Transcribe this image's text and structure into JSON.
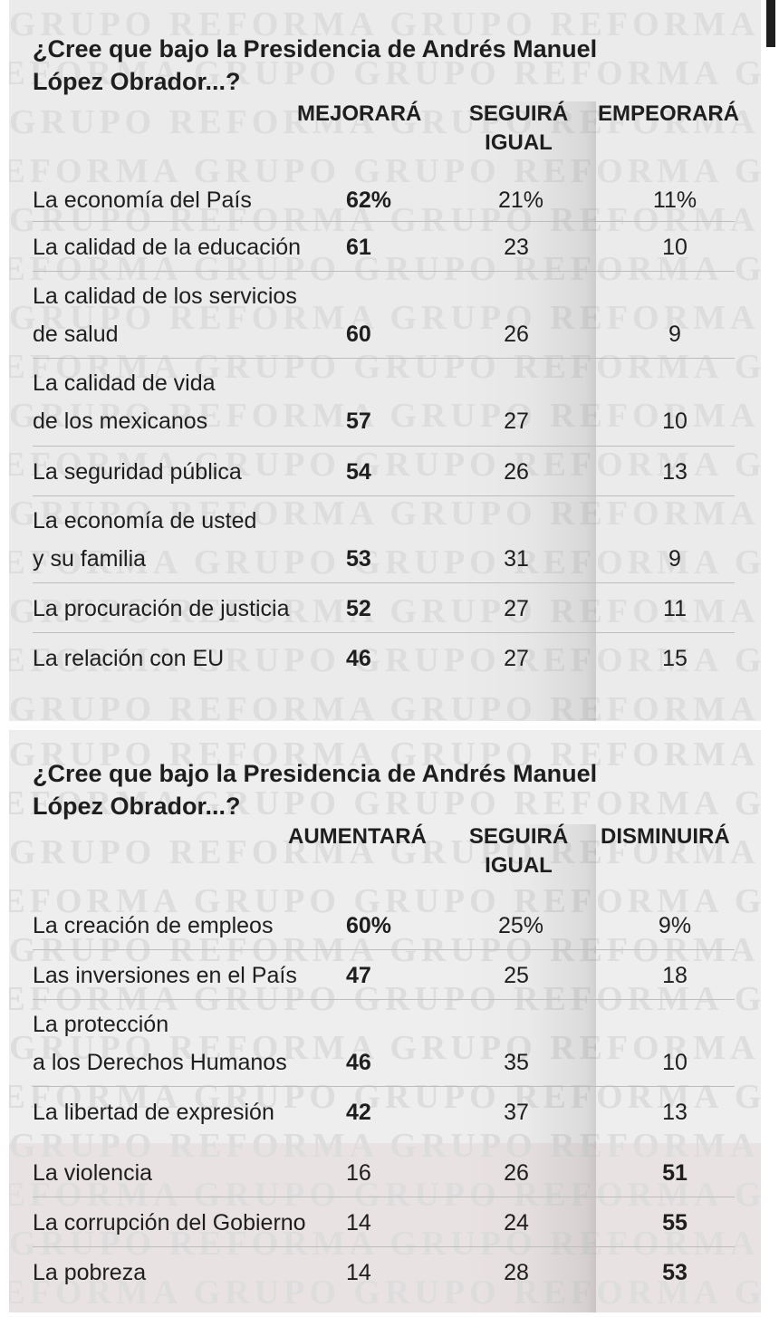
{
  "chart_data": [
    {
      "type": "table",
      "title": "¿Cree que bajo la Presidencia de Andrés Manuel López Obrador...?",
      "columns": [
        "MEJORARÁ",
        "SEGUIRÁ IGUAL",
        "EMPEORARÁ"
      ],
      "rows": [
        {
          "label": "La economía del País",
          "values": [
            "62%",
            "21%",
            "11%"
          ]
        },
        {
          "label": "La calidad de la educación",
          "values": [
            "61",
            "23",
            "10"
          ]
        },
        {
          "label": "La calidad de los servicios de salud",
          "values": [
            "60",
            "26",
            "9"
          ]
        },
        {
          "label": "La calidad de vida de los mexicanos",
          "values": [
            "57",
            "27",
            "10"
          ]
        },
        {
          "label": "La seguridad pública",
          "values": [
            "54",
            "26",
            "13"
          ]
        },
        {
          "label": "La economía de usted y su familia",
          "values": [
            "53",
            "31",
            "9"
          ]
        },
        {
          "label": "La procuración de justicia",
          "values": [
            "52",
            "27",
            "11"
          ]
        },
        {
          "label": "La relación con EU",
          "values": [
            "46",
            "27",
            "15"
          ]
        }
      ]
    },
    {
      "type": "table",
      "title": "¿Cree que bajo la Presidencia de Andrés Manuel López Obrador...?",
      "columns": [
        "AUMENTARÁ",
        "SEGUIRÁ IGUAL",
        "DISMINUIRÁ"
      ],
      "rows": [
        {
          "label": "La creación de empleos",
          "values": [
            "60%",
            "25%",
            "9%"
          ]
        },
        {
          "label": "Las inversiones en el País",
          "values": [
            "47",
            "25",
            "18"
          ]
        },
        {
          "label": "La protección a los Derechos Humanos",
          "values": [
            "46",
            "35",
            "10"
          ]
        },
        {
          "label": "La libertad de expresión",
          "values": [
            "42",
            "37",
            "13"
          ]
        },
        {
          "label": "La violencia",
          "values": [
            "16",
            "26",
            "51"
          ]
        },
        {
          "label": "La corrupción del Gobierno",
          "values": [
            "14",
            "24",
            "55"
          ]
        },
        {
          "label": "La pobreza",
          "values": [
            "14",
            "28",
            "53"
          ]
        }
      ]
    }
  ],
  "table1": {
    "title_line1": "¿Cree que bajo la Presidencia de Andrés Manuel",
    "title_line2": "López Obrador...?",
    "col1": "MEJORARÁ",
    "col2_line1": "SEGUIRÁ",
    "col2_line2": "IGUAL",
    "col3": "EMPEORARÁ",
    "rows": [
      {
        "l1": "La economía del País",
        "l2": "",
        "v1": "62%",
        "v2": "21%",
        "v3": "11%"
      },
      {
        "l1": "La calidad de la educación",
        "l2": "",
        "v1": "61",
        "v2": "23",
        "v3": "10"
      },
      {
        "l1": "La calidad de los servicios",
        "l2": "de salud",
        "v1": "60",
        "v2": "26",
        "v3": "9"
      },
      {
        "l1": "La calidad de vida",
        "l2": "de los mexicanos",
        "v1": "57",
        "v2": "27",
        "v3": "10"
      },
      {
        "l1": "La seguridad pública",
        "l2": "",
        "v1": "54",
        "v2": "26",
        "v3": "13"
      },
      {
        "l1": "La economía de usted",
        "l2": "y su familia",
        "v1": "53",
        "v2": "31",
        "v3": "9"
      },
      {
        "l1": "La procuración de justicia",
        "l2": "",
        "v1": "52",
        "v2": "27",
        "v3": "11"
      },
      {
        "l1": "La relación con EU",
        "l2": "",
        "v1": "46",
        "v2": "27",
        "v3": "15"
      }
    ]
  },
  "table2": {
    "title_line1": "¿Cree que bajo la Presidencia de Andrés Manuel",
    "title_line2": "López Obrador...?",
    "col1": "AUMENTARÁ",
    "col2_line1": "SEGUIRÁ",
    "col2_line2": "IGUAL",
    "col3": "DISMINUIRÁ",
    "rows": [
      {
        "l1": "La creación de empleos",
        "l2": "",
        "v1": "60%",
        "v2": "25%",
        "v3": "9%"
      },
      {
        "l1": "Las inversiones en el País",
        "l2": "",
        "v1": "47",
        "v2": "25",
        "v3": "18"
      },
      {
        "l1": "La protección",
        "l2": "a los Derechos Humanos",
        "v1": "46",
        "v2": "35",
        "v3": "10"
      },
      {
        "l1": "La libertad de expresión",
        "l2": "",
        "v1": "42",
        "v2": "37",
        "v3": "13"
      },
      {
        "l1": "La violencia",
        "l2": "",
        "v1": "16",
        "v2": "26",
        "v3": "51"
      },
      {
        "l1": "La corrupción del Gobierno",
        "l2": "",
        "v1": "14",
        "v2": "24",
        "v3": "55"
      },
      {
        "l1": "La pobreza",
        "l2": "",
        "v1": "14",
        "v2": "28",
        "v3": "53"
      }
    ]
  },
  "watermark": {
    "text": "GRUPO REFORMA"
  },
  "colors": {
    "background": "#ebebeb",
    "text": "#1e1e1e",
    "watermark": "#dddddd",
    "highlight_rows": "#ecdcdc"
  }
}
